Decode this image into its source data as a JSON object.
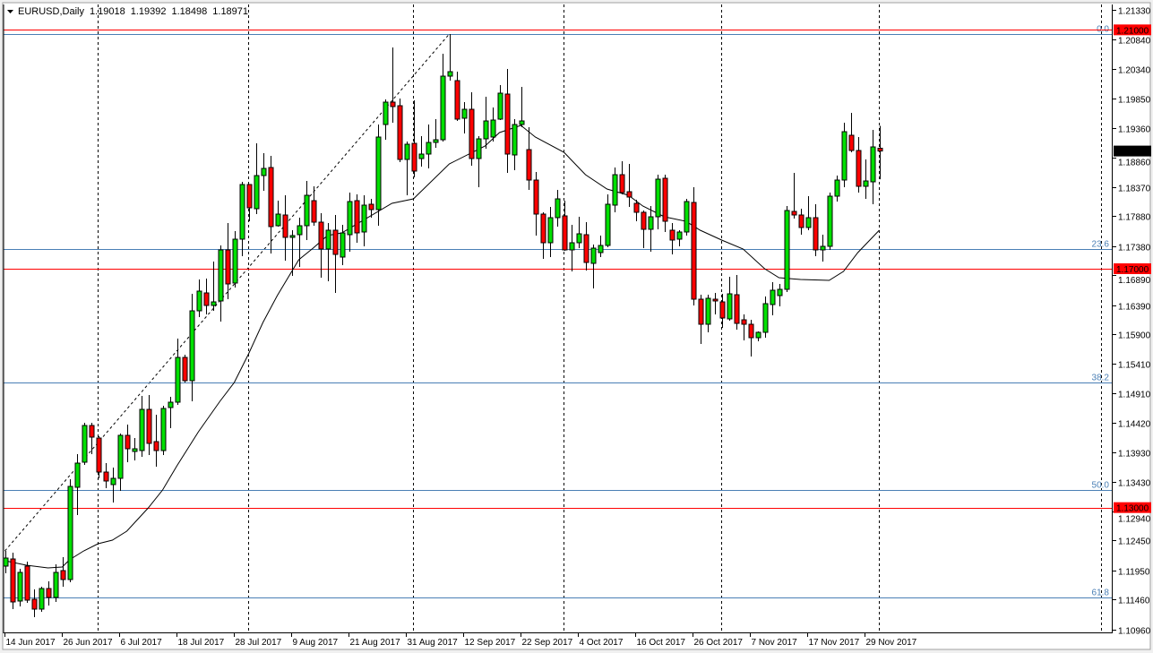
{
  "header": {
    "symbol_timeframe": "EURUSD,Daily",
    "open": "1.19018",
    "high": "1.19392",
    "low": "1.18498",
    "close": "1.18971",
    "menu_icon": "triangle-down-icon"
  },
  "colors": {
    "bull": "#00e000",
    "bear": "#ff0000",
    "outline": "#000000",
    "level_line": "#ff0000",
    "fib_line": "#4a7fb5",
    "current_price_bg": "#000000"
  },
  "chart_data": {
    "type": "candlestick",
    "symbol": "EURUSD",
    "timeframe": "Daily",
    "ylim": [
      1.1096,
      1.2133
    ],
    "grid": false,
    "price_ticks": [
      "1.21330",
      "1.20840",
      "1.20340",
      "1.19850",
      "1.19360",
      "1.18860",
      "1.18370",
      "1.17880",
      "1.17380",
      "1.16890",
      "1.16390",
      "1.15900",
      "1.15410",
      "1.14910",
      "1.14420",
      "1.13930",
      "1.13430",
      "1.12940",
      "1.12450",
      "1.11950",
      "1.11460",
      "1.10960"
    ],
    "x_tick_labels": [
      {
        "bar": 0,
        "label": "14 Jun 2017"
      },
      {
        "bar": 8,
        "label": "26 Jun 2017"
      },
      {
        "bar": 16,
        "label": "6 Jul 2017"
      },
      {
        "bar": 24,
        "label": "18 Jul 2017"
      },
      {
        "bar": 32,
        "label": "28 Jul 2017"
      },
      {
        "bar": 40,
        "label": "9 Aug 2017"
      },
      {
        "bar": 48,
        "label": "21 Aug 2017"
      },
      {
        "bar": 56,
        "label": "31 Aug 2017"
      },
      {
        "bar": 64,
        "label": "12 Sep 2017"
      },
      {
        "bar": 72,
        "label": "22 Sep 2017"
      },
      {
        "bar": 80,
        "label": "4 Oct 2017"
      },
      {
        "bar": 88,
        "label": "16 Oct 2017"
      },
      {
        "bar": 96,
        "label": "26 Oct 2017"
      },
      {
        "bar": 104,
        "label": "7 Nov 2017"
      },
      {
        "bar": 112,
        "label": "17 Nov 2017"
      },
      {
        "bar": 120,
        "label": "29 Nov 2017"
      }
    ],
    "period_separators_bars": [
      13,
      34,
      57,
      78,
      100,
      122,
      153
    ],
    "ohlc_fields": [
      "open",
      "high",
      "low",
      "close"
    ],
    "candles": [
      [
        1.1202,
        1.12275,
        1.119,
        1.12155
      ],
      [
        1.1214,
        1.12245,
        1.113,
        1.1142
      ],
      [
        1.11435,
        1.11975,
        1.11345,
        1.11915
      ],
      [
        1.1202,
        1.12095,
        1.11405,
        1.1145
      ],
      [
        1.11465,
        1.1163,
        1.11165,
        1.113
      ],
      [
        1.113,
        1.11675,
        1.11255,
        1.11645
      ],
      [
        1.11645,
        1.11765,
        1.1136,
        1.11495
      ],
      [
        1.11495,
        1.1205,
        1.1142,
        1.11915
      ],
      [
        1.11945,
        1.1217,
        1.11675,
        1.11795
      ],
      [
        1.11795,
        1.13475,
        1.1175,
        1.13355
      ],
      [
        1.1334,
        1.13895,
        1.12875,
        1.13745
      ],
      [
        1.1376,
        1.1442,
        1.13715,
        1.14375
      ],
      [
        1.14375,
        1.1442,
        1.13895,
        1.1418
      ],
      [
        1.14165,
        1.14195,
        1.1349,
        1.13595
      ],
      [
        1.13595,
        1.13745,
        1.13325,
        1.13445
      ],
      [
        1.13385,
        1.1367,
        1.13085,
        1.1349
      ],
      [
        1.1349,
        1.1424,
        1.1328,
        1.1421
      ],
      [
        1.1421,
        1.1439,
        1.1376,
        1.13985
      ],
      [
        1.1394,
        1.14165,
        1.1379,
        1.13985
      ],
      [
        1.13955,
        1.1487,
        1.1385,
        1.14645
      ],
      [
        1.14645,
        1.14885,
        1.1388,
        1.14075
      ],
      [
        1.14105,
        1.14555,
        1.13685,
        1.13955
      ],
      [
        1.13955,
        1.14705,
        1.1388,
        1.1466
      ],
      [
        1.14675,
        1.14855,
        1.1433,
        1.14765
      ],
      [
        1.14765,
        1.1583,
        1.1472,
        1.15515
      ],
      [
        1.15515,
        1.1556,
        1.15095,
        1.15125
      ],
      [
        1.15125,
        1.1658,
        1.1478,
        1.16295
      ],
      [
        1.16295,
        1.1682,
        1.1619,
        1.16625
      ],
      [
        1.16595,
        1.16835,
        1.16235,
        1.16385
      ],
      [
        1.16385,
        1.1712,
        1.16295,
        1.16445
      ],
      [
        1.1646,
        1.1739,
        1.16115,
        1.17315
      ],
      [
        1.17315,
        1.17765,
        1.1649,
        1.16745
      ],
      [
        1.1676,
        1.1763,
        1.16685,
        1.17495
      ],
      [
        1.17495,
        1.18455,
        1.1721,
        1.1841
      ],
      [
        1.1841,
        1.1841,
        1.17795,
        1.1802
      ],
      [
        1.18005,
        1.191,
        1.17915,
        1.1856
      ],
      [
        1.1856,
        1.18935,
        1.18305,
        1.1868
      ],
      [
        1.18695,
        1.1889,
        1.17255,
        1.17705
      ],
      [
        1.1772,
        1.1814,
        1.17705,
        1.17915
      ],
      [
        1.179,
        1.1823,
        1.17135,
        1.17525
      ],
      [
        1.17525,
        1.17645,
        1.1688,
        1.17555
      ],
      [
        1.1757,
        1.17855,
        1.1703,
        1.1772
      ],
      [
        1.1772,
        1.1847,
        1.1748,
        1.1823
      ],
      [
        1.1814,
        1.1838,
        1.1772,
        1.1778
      ],
      [
        1.1778,
        1.1793,
        1.1685,
        1.1733
      ],
      [
        1.1733,
        1.17765,
        1.1679,
        1.17645
      ],
      [
        1.17645,
        1.179,
        1.16595,
        1.1724
      ],
      [
        1.17195,
        1.17735,
        1.1706,
        1.176
      ],
      [
        1.1757,
        1.18275,
        1.17285,
        1.18125
      ],
      [
        1.1814,
        1.18245,
        1.17435,
        1.176
      ],
      [
        1.17615,
        1.1823,
        1.17375,
        1.18065
      ],
      [
        1.1808,
        1.1817,
        1.17855,
        1.1799
      ],
      [
        1.1799,
        1.19415,
        1.1772,
        1.19205
      ],
      [
        1.19415,
        1.19835,
        1.1916,
        1.1979
      ],
      [
        1.1979,
        1.20705,
        1.19445,
        1.19715
      ],
      [
        1.1973,
        1.1985,
        1.18785,
        1.1883
      ],
      [
        1.1883,
        1.1913,
        1.1823,
        1.19085
      ],
      [
        1.191,
        1.1982,
        1.1853,
        1.18635
      ],
      [
        1.18845,
        1.1922,
        1.1871,
        1.1892
      ],
      [
        1.1892,
        1.19415,
        1.1868,
        1.19115
      ],
      [
        1.19115,
        1.19505,
        1.19025,
        1.1916
      ],
      [
        1.1916,
        1.206,
        1.1913,
        1.20225
      ],
      [
        1.20225,
        1.2093,
        1.2015,
        1.203
      ],
      [
        1.2015,
        1.203,
        1.19475,
        1.19505
      ],
      [
        1.1952,
        1.1979,
        1.19265,
        1.1967
      ],
      [
        1.1967,
        1.19955,
        1.18725,
        1.18845
      ],
      [
        1.18845,
        1.1922,
        1.18365,
        1.19175
      ],
      [
        1.19175,
        1.1988,
        1.1901,
        1.19475
      ],
      [
        1.19205,
        1.197,
        1.1913,
        1.1949
      ],
      [
        1.19505,
        1.20075,
        1.1949,
        1.1994
      ],
      [
        1.19925,
        1.20345,
        1.18605,
        1.1892
      ],
      [
        1.18905,
        1.19505,
        1.1865,
        1.19415
      ],
      [
        1.19415,
        1.20045,
        1.1937,
        1.19475
      ],
      [
        1.18995,
        1.1937,
        1.1832,
        1.18485
      ],
      [
        1.18485,
        1.1862,
        1.17555,
        1.17915
      ],
      [
        1.17915,
        1.17945,
        1.17165,
        1.17435
      ],
      [
        1.17435,
        1.18035,
        1.17195,
        1.17855
      ],
      [
        1.17855,
        1.1832,
        1.17705,
        1.1817
      ],
      [
        1.17885,
        1.1814,
        1.173,
        1.17315
      ],
      [
        1.17315,
        1.17735,
        1.16955,
        1.17435
      ],
      [
        1.17435,
        1.1787,
        1.17345,
        1.17585
      ],
      [
        1.1757,
        1.1778,
        1.1697,
        1.17105
      ],
      [
        1.1709,
        1.17405,
        1.1667,
        1.17345
      ],
      [
        1.1727,
        1.17555,
        1.17195,
        1.1739
      ],
      [
        1.1739,
        1.18245,
        1.1736,
        1.1808
      ],
      [
        1.18065,
        1.18695,
        1.17945,
        1.18575
      ],
      [
        1.18575,
        1.188,
        1.18245,
        1.18275
      ],
      [
        1.1829,
        1.18755,
        1.18035,
        1.182
      ],
      [
        1.18095,
        1.18155,
        1.17795,
        1.17945
      ],
      [
        1.17945,
        1.17975,
        1.17345,
        1.1766
      ],
      [
        1.1766,
        1.1805,
        1.17285,
        1.1787
      ],
      [
        1.1787,
        1.18575,
        1.1766,
        1.185
      ],
      [
        1.18515,
        1.18575,
        1.17615,
        1.17795
      ],
      [
        1.17645,
        1.17765,
        1.1724,
        1.1748
      ],
      [
        1.17495,
        1.17645,
        1.17375,
        1.17615
      ],
      [
        1.17615,
        1.1817,
        1.17555,
        1.18125
      ],
      [
        1.1811,
        1.18365,
        1.16385,
        1.1649
      ],
      [
        1.1649,
        1.16565,
        1.1574,
        1.1607
      ],
      [
        1.1607,
        1.16565,
        1.15935,
        1.16505
      ],
      [
        1.1649,
        1.16595,
        1.16235,
        1.1646
      ],
      [
        1.16445,
        1.1658,
        1.1601,
        1.16175
      ],
      [
        1.1616,
        1.16865,
        1.1613,
        1.1658
      ],
      [
        1.16565,
        1.16895,
        1.1598,
        1.16085
      ],
      [
        1.16145,
        1.16235,
        1.158,
        1.1607
      ],
      [
        1.1607,
        1.16145,
        1.1553,
        1.15845
      ],
      [
        1.15845,
        1.1595,
        1.15785,
        1.15935
      ],
      [
        1.15935,
        1.16535,
        1.15845,
        1.16415
      ],
      [
        1.164,
        1.16775,
        1.1622,
        1.1664
      ],
      [
        1.1655,
        1.16745,
        1.1637,
        1.16655
      ],
      [
        1.16655,
        1.1805,
        1.1661,
        1.17975
      ],
      [
        1.1796,
        1.18605,
        1.1784,
        1.179
      ],
      [
        1.179,
        1.18005,
        1.1757,
        1.1769
      ],
      [
        1.1769,
        1.18215,
        1.17645,
        1.17855
      ],
      [
        1.17855,
        1.1808,
        1.1721,
        1.17315
      ],
      [
        1.17315,
        1.1757,
        1.1712,
        1.17375
      ],
      [
        1.17375,
        1.18275,
        1.17315,
        1.18215
      ],
      [
        1.18215,
        1.1856,
        1.18125,
        1.18485
      ],
      [
        1.18485,
        1.19445,
        1.18365,
        1.19295
      ],
      [
        1.19235,
        1.1961,
        1.1895,
        1.1898
      ],
      [
        1.1898,
        1.19205,
        1.18275,
        1.1838
      ],
      [
        1.1838,
        1.1883,
        1.1817,
        1.1847
      ],
      [
        1.18455,
        1.19325,
        1.1808,
        1.1904
      ],
      [
        1.19018,
        1.19392,
        1.18498,
        1.18971
      ]
    ],
    "moving_average": [
      [
        0,
        1.1211
      ],
      [
        3,
        1.12035
      ],
      [
        6,
        1.1199
      ],
      [
        8,
        1.12005
      ],
      [
        9,
        1.12125
      ],
      [
        11,
        1.12275
      ],
      [
        13,
        1.12395
      ],
      [
        15,
        1.12455
      ],
      [
        17,
        1.12605
      ],
      [
        20,
        1.12995
      ],
      [
        22,
        1.13295
      ],
      [
        24,
        1.137
      ],
      [
        27,
        1.1427
      ],
      [
        30,
        1.1478
      ],
      [
        32,
        1.15095
      ],
      [
        34,
        1.15575
      ],
      [
        36,
        1.161
      ],
      [
        38,
        1.1655
      ],
      [
        41,
        1.1715
      ],
      [
        43,
        1.17345
      ],
      [
        45,
        1.17555
      ],
      [
        47,
        1.176
      ],
      [
        54,
        1.18095
      ],
      [
        57,
        1.1817
      ],
      [
        62,
        1.18755
      ],
      [
        67,
        1.19055
      ],
      [
        69,
        1.1928
      ],
      [
        72,
        1.194
      ],
      [
        74,
        1.19205
      ],
      [
        78,
        1.1895
      ],
      [
        81,
        1.18575
      ],
      [
        84,
        1.18335
      ],
      [
        87,
        1.1823
      ],
      [
        89,
        1.1805
      ],
      [
        92,
        1.1787
      ],
      [
        95,
        1.17795
      ],
      [
        97,
        1.17645
      ],
      [
        100,
        1.1748
      ],
      [
        103,
        1.1733
      ],
      [
        106,
        1.17
      ],
      [
        108,
        1.1685
      ],
      [
        111,
        1.1682
      ],
      [
        115,
        1.16805
      ],
      [
        117,
        1.16955
      ],
      [
        119,
        1.1727
      ],
      [
        122,
        1.17645
      ]
    ],
    "horizontal_lines": [
      {
        "price": 1.21,
        "label": "1.21000"
      },
      {
        "price": 1.17,
        "label": "1.17000"
      },
      {
        "price": 1.13,
        "label": "1.13000"
      }
    ],
    "current_price": {
      "price": 1.18971,
      "label": "1.18971"
    },
    "fibonacci": {
      "trendline": {
        "from_bar": 0,
        "from_price": 1.12275,
        "to_bar": 62,
        "to_price": 1.2093
      },
      "levels": [
        {
          "label": "0.0",
          "price": 1.2093
        },
        {
          "label": "23.6",
          "price": 1.1733
        },
        {
          "label": "38.2",
          "price": 1.15095
        },
        {
          "label": "50.0",
          "price": 1.13295
        },
        {
          "label": "61.8",
          "price": 1.11495
        }
      ]
    }
  }
}
